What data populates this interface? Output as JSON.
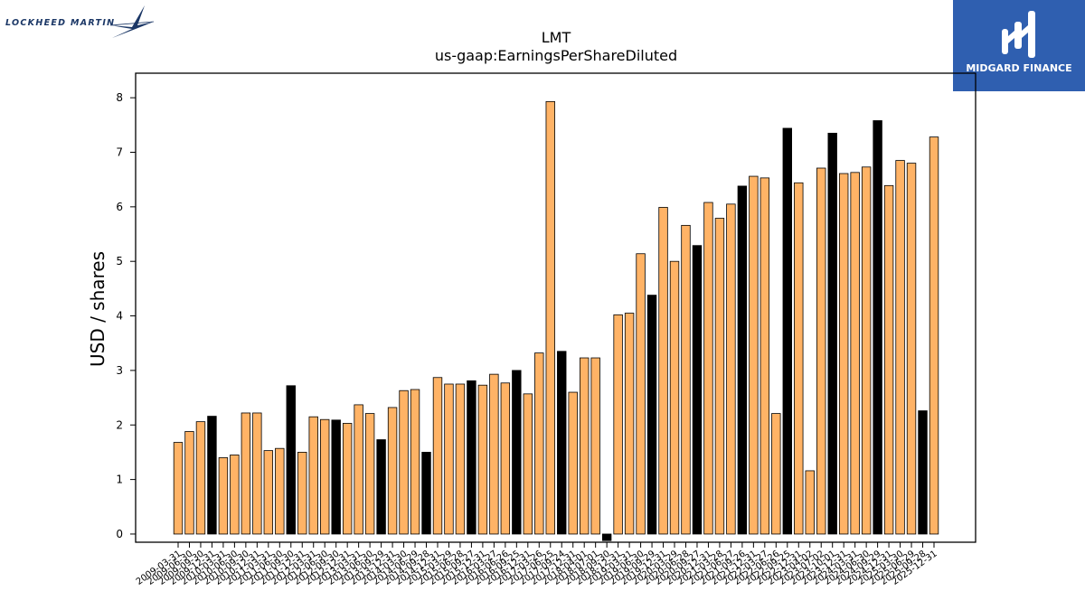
{
  "branding": {
    "left_logo_text": "LOCKHEED MARTIN",
    "right_logo_text": "MIDGARD FINANCE",
    "right_logo_bg": "#2f5fb0"
  },
  "chart_data": {
    "type": "bar",
    "title": "LMT",
    "subtitle": "us-gaap:EarningsPerShareDiluted",
    "xlabel": "",
    "ylabel": "USD / shares",
    "ylim": [
      -0.15,
      8.45
    ],
    "yticks": [
      0,
      1,
      2,
      3,
      4,
      5,
      6,
      7,
      8
    ],
    "grid": false,
    "colors": {
      "quarterly": "#ffb366",
      "annual": "#000000",
      "edge": "#000000"
    },
    "categories": [
      "2009-03-31",
      "2009-06-30",
      "2009-09-30",
      "2009-12-31",
      "2010-03-31",
      "2010-06-30",
      "2010-09-30",
      "2010-12-31",
      "2011-03-31",
      "2011-06-30",
      "2011-09-30",
      "2011-12-31",
      "2012-03-31",
      "2012-06-30",
      "2012-09-30",
      "2012-12-31",
      "2013-03-31",
      "2013-06-30",
      "2013-09-29",
      "2013-12-31",
      "2014-03-30",
      "2014-06-29",
      "2014-09-28",
      "2014-12-31",
      "2015-03-29",
      "2015-06-28",
      "2015-09-27",
      "2015-12-31",
      "2016-03-27",
      "2016-06-26",
      "2016-09-25",
      "2016-12-31",
      "2017-03-26",
      "2017-06-25",
      "2017-09-24",
      "2017-12-31",
      "2018-04-01",
      "2018-07-01",
      "2018-09-30",
      "2018-12-31",
      "2019-03-31",
      "2019-06-30",
      "2019-09-29",
      "2019-12-31",
      "2020-03-29",
      "2020-06-28",
      "2020-09-27",
      "2020-12-31",
      "2021-03-28",
      "2021-06-27",
      "2021-09-26",
      "2021-12-31",
      "2022-03-27",
      "2022-06-26",
      "2022-09-25",
      "2022-12-31",
      "2023-04-02",
      "2023-07-02",
      "2023-10-01",
      "2023-12-31",
      "2024-03-31",
      "2024-06-30",
      "2024-09-29",
      "2024-12-31",
      "2025-03-30",
      "2025-06-29",
      "2025-09-28",
      "2025-12-31"
    ],
    "values": [
      1.68,
      1.88,
      2.06,
      2.16,
      1.4,
      1.45,
      2.22,
      2.22,
      1.53,
      1.57,
      2.72,
      1.5,
      2.15,
      2.1,
      2.09,
      2.03,
      2.37,
      2.21,
      1.73,
      2.32,
      2.63,
      2.65,
      1.5,
      2.87,
      2.75,
      2.75,
      2.81,
      2.73,
      2.93,
      2.77,
      3.0,
      2.57,
      3.32,
      7.93,
      3.35,
      2.6,
      3.23,
      3.23,
      -0.12,
      4.02,
      4.05,
      5.14,
      4.38,
      5.99,
      5.0,
      5.66,
      5.29,
      6.08,
      5.79,
      6.05,
      6.38,
      6.56,
      6.53,
      2.21,
      7.44,
      6.44,
      1.16,
      6.71,
      7.35,
      6.61,
      6.63,
      6.73,
      7.58,
      6.39,
      6.85,
      6.8,
      2.26,
      7.28
    ],
    "annual_flags": [
      0,
      0,
      0,
      1,
      0,
      0,
      0,
      0,
      0,
      0,
      1,
      0,
      0,
      0,
      1,
      0,
      0,
      0,
      1,
      0,
      0,
      0,
      1,
      0,
      0,
      0,
      1,
      0,
      0,
      0,
      1,
      0,
      0,
      0,
      1,
      0,
      0,
      0,
      1,
      0,
      0,
      0,
      1,
      0,
      0,
      0,
      1,
      0,
      0,
      0,
      1,
      0,
      0,
      0,
      1,
      0,
      0,
      0,
      1,
      0,
      0,
      0,
      1,
      0,
      0,
      0,
      1,
      0
    ],
    "x_tick_labels": [
      "2009-03-31",
      "2009-06-30",
      "2009-09-30",
      "2009-12-31",
      "2010-03-31",
      "2010-06-30",
      "2010-09-30",
      "2010-12-31",
      "2011-03-31",
      "2011-06-30",
      "2011-09-30",
      "2011-12-31",
      "2012-03-31",
      "2012-06-30",
      "2012-09-30",
      "2012-12-31",
      "2013-03-31",
      "2013-06-30",
      "2013-09-29",
      "2013-12-31",
      "2014-03-30",
      "2014-06-29",
      "2014-09-28",
      "2014-12-31",
      "2015-03-29",
      "2015-06-28",
      "2015-09-27",
      "2015-12-31",
      "2016-03-27",
      "2016-06-26",
      "2016-09-25",
      "2016-12-31",
      "2017-03-26",
      "2017-06-25",
      "2017-09-24",
      "2017-12-31",
      "2018-04-01",
      "2018-07-01",
      "2018-09-30",
      "2018-12-31",
      "2019-03-31",
      "2019-06-30",
      "2019-09-29",
      "2019-12-31",
      "2020-03-29",
      "2020-06-28",
      "2020-09-27",
      "2020-12-31",
      "2021-03-28",
      "2021-06-27",
      "2021-09-26",
      "2021-12-31",
      "2022-03-27",
      "2022-06-26",
      "2022-09-25",
      "2022-12-31",
      "2023-04-02",
      "2023-07-02",
      "2023-10-01",
      "2023-12-31",
      "2024-03-31",
      "2024-06-30",
      "2024-09-29",
      "2024-12-31",
      "2025-03-30",
      "2025-06-29",
      "2025-09-28",
      "2025-12-31"
    ]
  }
}
